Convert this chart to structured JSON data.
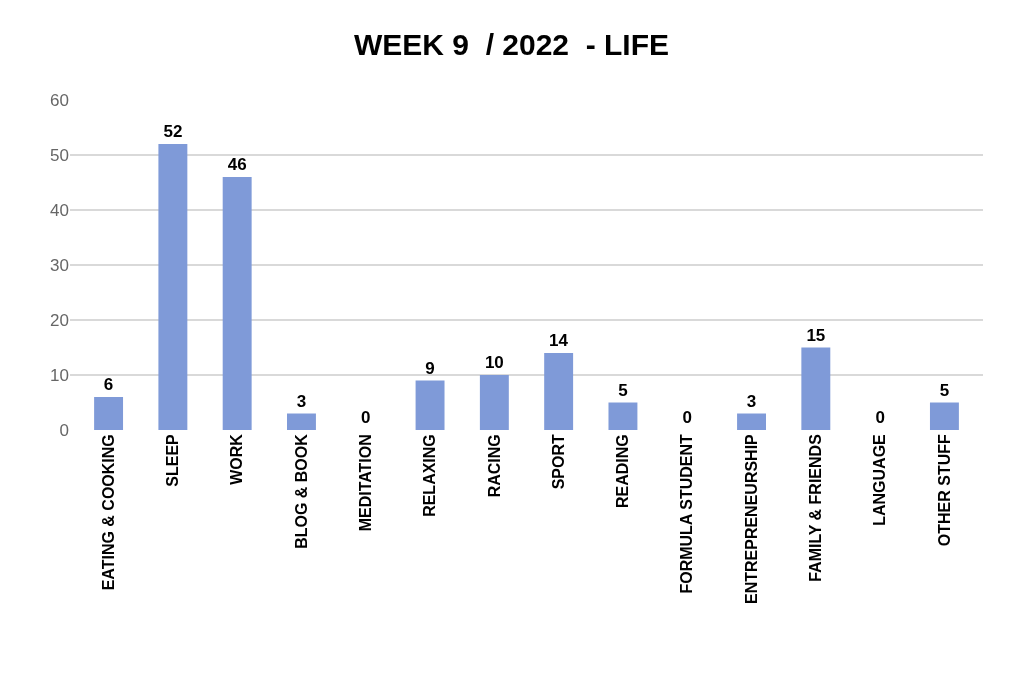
{
  "chart_data": {
    "type": "bar",
    "title": "WEEK 9  / 2022  - LIFE",
    "categories": [
      "EATING & COOKING",
      "SLEEP",
      "WORK",
      "BLOG & BOOK",
      "MEDITATION",
      "RELAXING",
      "RACING",
      "SPORT",
      "READING",
      "FORMULA STUDENT",
      "ENTREPRENEURSHIP",
      "FAMILY & FRIENDS",
      "LANGUAGE",
      "OTHER STUFF"
    ],
    "values": [
      6,
      52,
      46,
      3,
      0,
      9,
      10,
      14,
      5,
      0,
      3,
      15,
      0,
      5
    ],
    "color": "#7f9ad8",
    "ylim": [
      0,
      60
    ],
    "yticks": [
      0,
      10,
      20,
      30,
      40,
      50,
      60
    ],
    "grid": "y",
    "data_labels": true
  }
}
